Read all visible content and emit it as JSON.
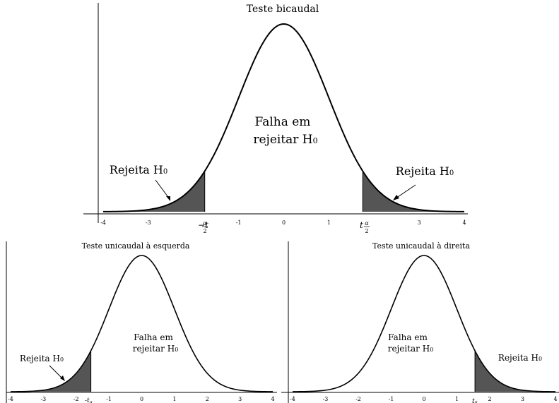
{
  "chart_data": [
    {
      "type": "area",
      "title": "Teste bicaudal",
      "x_range": [
        -4,
        4
      ],
      "ticks": [
        "-4",
        "-3",
        "",
        "-1",
        "0",
        "1",
        "",
        "3",
        "4"
      ],
      "critical_values": [
        -1.75,
        1.75
      ],
      "critical_labels": [
        {
          "sign": "−",
          "base": "t",
          "sub_num": "α",
          "sub_den": "2"
        },
        {
          "sign": "",
          "base": "t",
          "sub_num": "α",
          "sub_den": "2"
        }
      ],
      "shaded": [
        "left",
        "right"
      ],
      "center_label": [
        "Falha em",
        "rejeitar H",
        "0"
      ],
      "reject_label_left": [
        "Rejeita H",
        "0"
      ],
      "reject_label_right": [
        "Rejeita H",
        "0"
      ]
    },
    {
      "type": "area",
      "title": "Teste unicaudal à esquerda",
      "x_range": [
        -4,
        4
      ],
      "ticks": [
        "-4",
        "-3",
        "-2",
        "-1",
        "0",
        "1",
        "2",
        "3",
        "4"
      ],
      "critical_values": [
        -1.55
      ],
      "critical_label": "-t",
      "critical_sub": "α",
      "shaded": [
        "left"
      ],
      "center_label": [
        "Falha em",
        "rejeitar H",
        "0"
      ],
      "reject_label": [
        "Rejeita H",
        "0"
      ]
    },
    {
      "type": "area",
      "title": "Teste unicaudal à direita",
      "x_range": [
        -4,
        4
      ],
      "ticks": [
        "-4",
        "-3",
        "-2",
        "-1",
        "0",
        "1",
        "2",
        "3",
        "4"
      ],
      "critical_values": [
        1.55
      ],
      "critical_label": "t",
      "critical_sub": "α",
      "shaded": [
        "right"
      ],
      "center_label": [
        "Falha em",
        "rejeitar H",
        "0"
      ],
      "reject_label": [
        "Rejeita H",
        "0"
      ]
    }
  ],
  "colors": {
    "shade": "#555555",
    "line": "#000000"
  }
}
